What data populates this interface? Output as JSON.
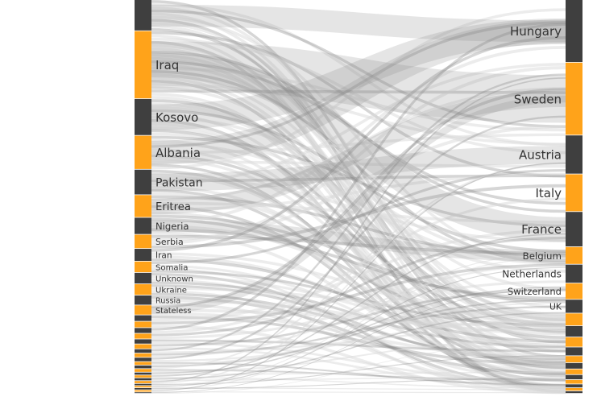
{
  "colors": {
    "bar_dark": "#3f3f3f",
    "bar_orange": "#ffa31a",
    "flow": "#8a8a8a",
    "flow_light": "#d9d9d9",
    "background": "#ffffff",
    "label": "#333333"
  },
  "diagram": {
    "type": "alluvial",
    "origins": [
      {
        "label": "",
        "weight": 2.2
      },
      {
        "label": "Iraq",
        "weight": 4.8
      },
      {
        "label": "Kosovo",
        "weight": 2.6
      },
      {
        "label": "Albania",
        "weight": 2.4
      },
      {
        "label": "Pakistan",
        "weight": 1.8
      },
      {
        "label": "Eritrea",
        "weight": 1.6
      },
      {
        "label": "Nigeria",
        "weight": 1.2
      },
      {
        "label": "Serbia",
        "weight": 1.0
      },
      {
        "label": "Iran",
        "weight": 0.9
      },
      {
        "label": "Somalia",
        "weight": 0.8
      },
      {
        "label": "Unknown",
        "weight": 0.8
      },
      {
        "label": "Ukraine",
        "weight": 0.8
      },
      {
        "label": "Russia",
        "weight": 0.7
      },
      {
        "label": "Stateless",
        "weight": 0.7
      },
      {
        "label": "",
        "weight": 0.45
      },
      {
        "label": "",
        "weight": 0.45
      },
      {
        "label": "",
        "weight": 0.4
      },
      {
        "label": "",
        "weight": 0.4
      },
      {
        "label": "",
        "weight": 0.35
      },
      {
        "label": "",
        "weight": 0.35
      },
      {
        "label": "",
        "weight": 0.3
      },
      {
        "label": "",
        "weight": 0.3
      },
      {
        "label": "",
        "weight": 0.3
      },
      {
        "label": "",
        "weight": 0.25
      },
      {
        "label": "",
        "weight": 0.25
      },
      {
        "label": "",
        "weight": 0.25
      },
      {
        "label": "",
        "weight": 0.2
      },
      {
        "label": "",
        "weight": 0.2
      },
      {
        "label": "",
        "weight": 0.2
      },
      {
        "label": "",
        "weight": 0.2
      },
      {
        "label": "",
        "weight": 0.15
      },
      {
        "label": "",
        "weight": 0.15
      },
      {
        "label": "",
        "weight": 0.15
      },
      {
        "label": "",
        "weight": 0.15
      },
      {
        "label": "",
        "weight": 0.1
      }
    ],
    "destinations": [
      {
        "label": "Hungary",
        "weight": 5.0
      },
      {
        "label": "Sweden",
        "weight": 5.8
      },
      {
        "label": "Austria",
        "weight": 3.1
      },
      {
        "label": "Italy",
        "weight": 3.0
      },
      {
        "label": "France",
        "weight": 2.8
      },
      {
        "label": "Belgium",
        "weight": 1.4
      },
      {
        "label": "Netherlands",
        "weight": 1.5
      },
      {
        "label": "Switzerland",
        "weight": 1.3
      },
      {
        "label": "UK",
        "weight": 1.1
      },
      {
        "label": "",
        "weight": 1.0
      },
      {
        "label": "",
        "weight": 0.9
      },
      {
        "label": "",
        "weight": 0.8
      },
      {
        "label": "",
        "weight": 0.7
      },
      {
        "label": "",
        "weight": 0.55
      },
      {
        "label": "",
        "weight": 0.5
      },
      {
        "label": "",
        "weight": 0.45
      },
      {
        "label": "",
        "weight": 0.4
      },
      {
        "label": "",
        "weight": 0.35
      },
      {
        "label": "",
        "weight": 0.3
      },
      {
        "label": "",
        "weight": 0.25
      },
      {
        "label": "",
        "weight": 0.2
      }
    ]
  }
}
